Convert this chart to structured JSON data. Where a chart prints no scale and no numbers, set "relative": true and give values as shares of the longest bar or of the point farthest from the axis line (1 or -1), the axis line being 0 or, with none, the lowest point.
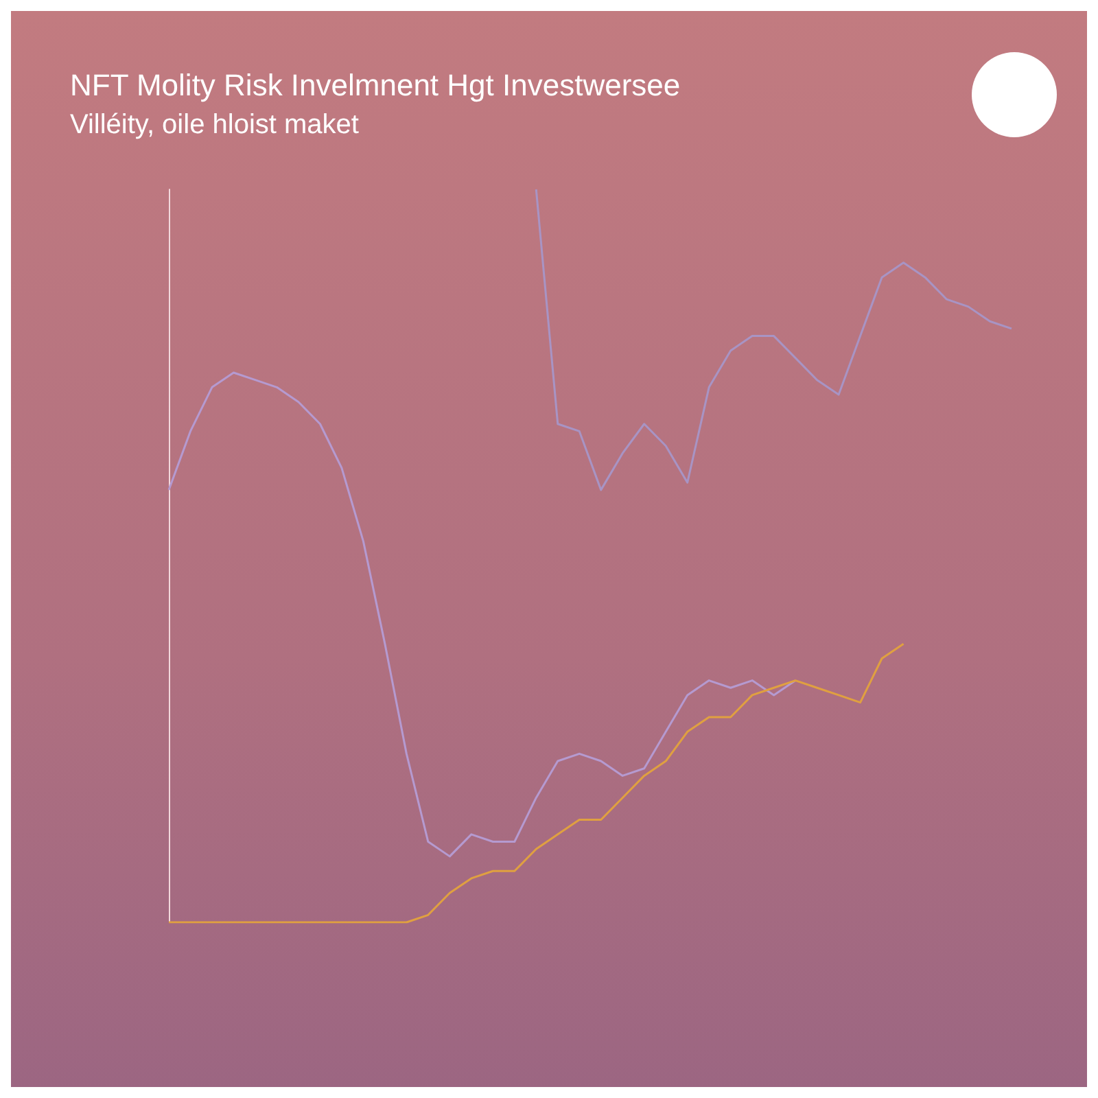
{
  "chart_data": {
    "type": "line",
    "title": "NFT Molity Risk Invelmnent Hgt Investwersee",
    "subtitle": "Villéity, oile hloist maket",
    "relative": true,
    "marker": "none",
    "categories": [
      null,
      null,
      null,
      null,
      null,
      null,
      null,
      null,
      null,
      null,
      null,
      null,
      null,
      null,
      null,
      null,
      null,
      null,
      null,
      null,
      null,
      null,
      null,
      null,
      null,
      null,
      null,
      null,
      null,
      null,
      null,
      null,
      null,
      null,
      null,
      null,
      null,
      null,
      null,
      null
    ],
    "series": [
      {
        "color": "#b59ad0",
        "values": [
          0.59,
          0.67,
          0.73,
          0.75,
          0.74,
          0.73,
          0.71,
          0.68,
          0.62,
          0.52,
          0.38,
          0.23,
          0.11,
          0.09,
          0.12,
          0.11,
          0.11,
          0.17,
          0.22,
          0.23,
          0.22,
          0.2,
          0.21,
          0.26,
          0.31,
          0.33,
          0.32,
          0.33,
          0.31,
          0.33,
          null,
          null,
          null,
          null,
          null,
          null,
          null,
          null,
          null,
          null
        ]
      },
      {
        "color": "#a894c4",
        "values": [
          null,
          null,
          null,
          null,
          null,
          null,
          null,
          null,
          null,
          null,
          null,
          null,
          null,
          null,
          null,
          null,
          null,
          1,
          0.68,
          0.67,
          0.59,
          0.64,
          0.68,
          0.65,
          0.6,
          0.73,
          0.78,
          0.8,
          0.8,
          0.77,
          0.74,
          0.72,
          0.8,
          0.88,
          0.9,
          0.88,
          0.85,
          0.84,
          0.82,
          0.81
        ]
      },
      {
        "color": "#e0a040",
        "values": [
          0,
          0,
          0,
          0,
          0,
          0,
          0,
          0,
          0,
          0,
          0,
          0,
          0.01,
          0.04,
          0.06,
          0.07,
          0.07,
          0.1,
          0.12,
          0.14,
          0.14,
          0.17,
          0.2,
          0.22,
          0.26,
          0.28,
          0.28,
          0.31,
          0.32,
          0.33,
          0.32,
          0.31,
          0.3,
          0.36,
          0.38,
          null,
          null,
          null,
          null,
          null
        ]
      }
    ]
  }
}
